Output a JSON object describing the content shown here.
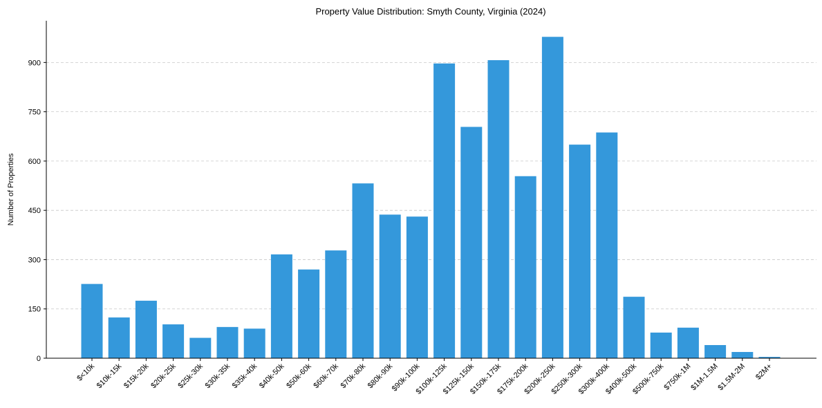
{
  "chart_data": {
    "type": "bar",
    "title": "Property Value Distribution: Smyth County, Virginia (2024)",
    "xlabel": "",
    "ylabel": "Number of Properties",
    "categories": [
      "$<10k",
      "$10k-15k",
      "$15k-20k",
      "$20k-25k",
      "$25k-30k",
      "$30k-35k",
      "$35k-40k",
      "$40k-50k",
      "$50k-60k",
      "$60k-70k",
      "$70k-80k",
      "$80k-90k",
      "$90k-100k",
      "$100k-125k",
      "$125k-150k",
      "$150k-175k",
      "$175k-200k",
      "$200k-250k",
      "$250k-300k",
      "$300k-400k",
      "$400k-500k",
      "$500k-750k",
      "$750k-1M",
      "$1M-1.5M",
      "$1.5M-2M",
      "$2M+"
    ],
    "values": [
      226,
      124,
      175,
      103,
      62,
      95,
      90,
      316,
      270,
      328,
      532,
      437,
      431,
      897,
      704,
      907,
      554,
      978,
      650,
      687,
      187,
      78,
      93,
      40,
      19,
      4
    ],
    "yticks": [
      0,
      150,
      300,
      450,
      600,
      750,
      900
    ],
    "ylim": [
      0,
      1027
    ],
    "bar_color": "#3498db",
    "grid": "horizontal dashed"
  }
}
